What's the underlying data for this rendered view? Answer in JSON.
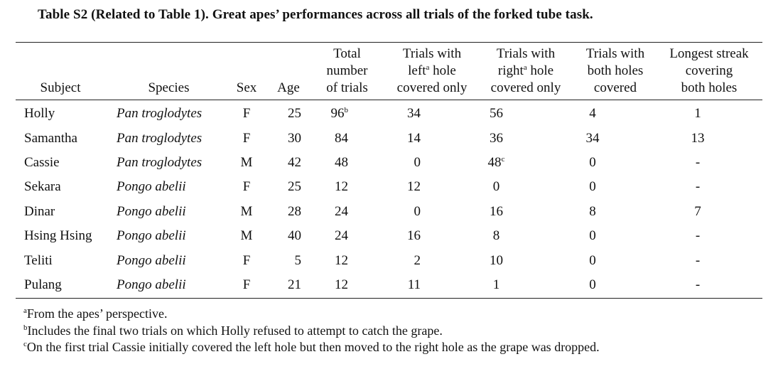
{
  "caption": "Table S2 (Related to Table 1). Great apes’ performances across all trials of the forked tube task.",
  "headers": {
    "subject": "Subject",
    "species": "Species",
    "sex": "Sex",
    "age": "Age",
    "total": [
      "Total",
      "number",
      "of trials"
    ],
    "left": [
      "Trials with",
      "left",
      "a",
      " hole",
      "covered only"
    ],
    "right": [
      "Trials with",
      "right",
      "a",
      " hole",
      "covered only"
    ],
    "both": [
      "Trials with",
      "both holes",
      "covered"
    ],
    "streak": [
      "Longest streak",
      "covering",
      "both holes"
    ]
  },
  "rows": [
    {
      "subject": "Holly",
      "species": "Pan troglodytes",
      "sex": "F",
      "age": "25",
      "total": "96",
      "total_sup": "b",
      "left": "34",
      "right": "56",
      "right_sup": "",
      "both": "4",
      "streak": "1"
    },
    {
      "subject": "Samantha",
      "species": "Pan troglodytes",
      "sex": "F",
      "age": "30",
      "total": "84",
      "total_sup": "",
      "left": "14",
      "right": "36",
      "right_sup": "",
      "both": "34",
      "streak": "13"
    },
    {
      "subject": "Cassie",
      "species": "Pan troglodytes",
      "sex": "M",
      "age": "42",
      "total": "48",
      "total_sup": "",
      "left": "0",
      "right": "48",
      "right_sup": "c",
      "both": "0",
      "streak": "-"
    },
    {
      "subject": "Sekara",
      "species": "Pongo abelii",
      "sex": "F",
      "age": "25",
      "total": "12",
      "total_sup": "",
      "left": "12",
      "right": "0",
      "right_sup": "",
      "both": "0",
      "streak": "-"
    },
    {
      "subject": "Dinar",
      "species": "Pongo abelii",
      "sex": "M",
      "age": "28",
      "total": "24",
      "total_sup": "",
      "left": "0",
      "right": "16",
      "right_sup": "",
      "both": "8",
      "streak": "7"
    },
    {
      "subject": "Hsing Hsing",
      "species": "Pongo abelii",
      "sex": "M",
      "age": "40",
      "total": "24",
      "total_sup": "",
      "left": "16",
      "right": "8",
      "right_sup": "",
      "both": "0",
      "streak": "-"
    },
    {
      "subject": "Teliti",
      "species": "Pongo abelii",
      "sex": "F",
      "age": "5",
      "total": "12",
      "total_sup": "",
      "left": "2",
      "right": "10",
      "right_sup": "",
      "both": "0",
      "streak": "-"
    },
    {
      "subject": "Pulang",
      "species": "Pongo abelii",
      "sex": "F",
      "age": "21",
      "total": "12",
      "total_sup": "",
      "left": "11",
      "right": "1",
      "right_sup": "",
      "both": "0",
      "streak": "-"
    }
  ],
  "footnotes": [
    {
      "mark": "a",
      "text": "From the apes’ perspective."
    },
    {
      "mark": "b",
      "text": "Includes the final two trials on which Holly refused to attempt to catch the grape."
    },
    {
      "mark": "c",
      "text": "On the first trial Cassie initially covered the left hole but then moved to the right hole as the grape was dropped."
    }
  ]
}
